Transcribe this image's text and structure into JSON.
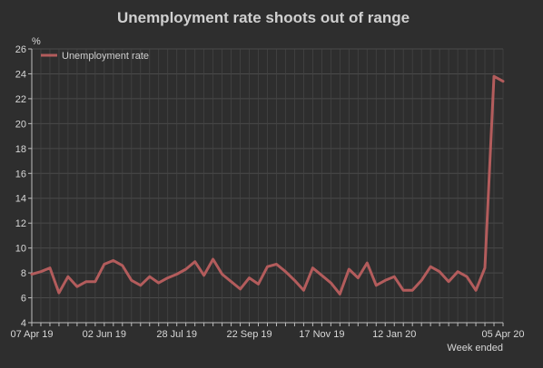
{
  "chart_data": {
    "type": "line",
    "title": "Unemployment rate shoots out of range",
    "ylabel": "%",
    "xlabel": "Week ended",
    "ylim": [
      4,
      26
    ],
    "yticks": [
      4,
      6,
      8,
      10,
      12,
      14,
      16,
      18,
      20,
      22,
      24,
      26
    ],
    "xtick_labels": [
      "07 Apr 19",
      "02 Jun 19",
      "28 Jul 19",
      "22 Sep 19",
      "17 Nov 19",
      "12 Jan 20",
      "05 Apr 20"
    ],
    "xtick_weeks": [
      0,
      8,
      16,
      24,
      32,
      40,
      52
    ],
    "grid": true,
    "legend_position": "top-left",
    "series": [
      {
        "name": "Unemployment rate",
        "color": "#b35c5c",
        "values": [
          7.9,
          8.1,
          8.4,
          6.4,
          7.7,
          6.9,
          7.3,
          7.3,
          8.7,
          9.0,
          8.6,
          7.4,
          7.0,
          7.7,
          7.2,
          7.6,
          7.9,
          8.3,
          8.9,
          7.8,
          9.1,
          7.9,
          7.3,
          6.7,
          7.6,
          7.1,
          8.5,
          8.7,
          8.1,
          7.4,
          6.6,
          8.4,
          7.8,
          7.2,
          6.3,
          8.3,
          7.6,
          8.8,
          7.0,
          7.4,
          7.7,
          6.6,
          6.6,
          7.4,
          8.5,
          8.1,
          7.3,
          8.1,
          7.7,
          6.6,
          8.4,
          23.8,
          23.4
        ]
      }
    ]
  }
}
